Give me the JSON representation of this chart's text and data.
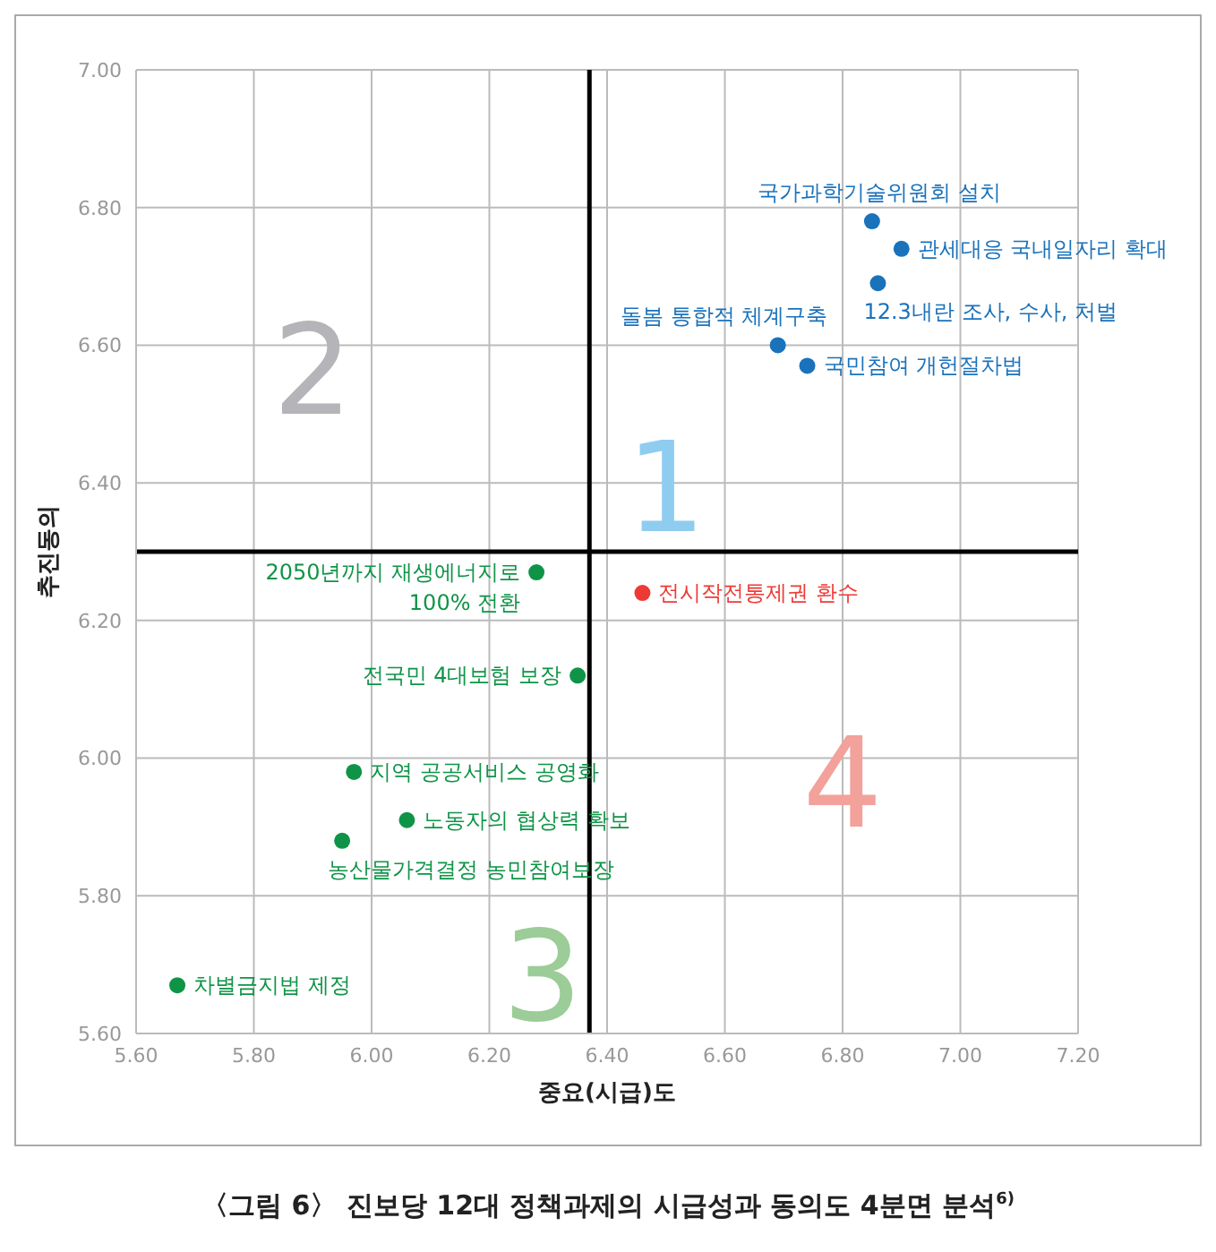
{
  "chart_data": {
    "type": "scatter",
    "title": "〈그림 6〉 진보당 12대 정책과제의 시급성과 동의도 4분면 분석$^{6)}$",
    "xlabel": "중요(시급)도",
    "ylabel": "추진동의",
    "xlim": [
      5.6,
      7.2
    ],
    "xticks": [
      {
        "value": 5.6,
        "label": "5.60"
      },
      {
        "value": 5.8,
        "label": "5.80"
      },
      {
        "value": 6.0,
        "label": "6.00"
      },
      {
        "value": 6.2,
        "label": "6.20"
      },
      {
        "value": 6.4,
        "label": "6.40"
      },
      {
        "value": 6.6,
        "label": "6.60"
      },
      {
        "value": 6.8,
        "label": "6.80"
      },
      {
        "value": 7.0,
        "label": "7.00"
      },
      {
        "value": 7.2,
        "label": "7.20"
      }
    ],
    "ylim": [
      5.6,
      7.0
    ],
    "yticks": [
      {
        "value": 5.6,
        "label": "5.60"
      },
      {
        "value": 5.8,
        "label": "5.80"
      },
      {
        "value": 6.0,
        "label": "6.00"
      },
      {
        "value": 6.2,
        "label": "6.20"
      },
      {
        "value": 6.4,
        "label": "6.40"
      },
      {
        "value": 6.6,
        "label": "6.60"
      },
      {
        "value": 6.8,
        "label": "6.80"
      },
      {
        "value": 7.0,
        "label": "7.00"
      }
    ],
    "grid": true,
    "marker": "circle",
    "ref_lines": [
      {
        "axis": "x",
        "value": 6.37,
        "color": "#000000"
      },
      {
        "axis": "y",
        "value": 6.3,
        "color": "#000000"
      }
    ],
    "annotations": [
      "1",
      "2",
      "3",
      "4"
    ],
    "series": [
      {
        "name": "국가과학기술위원회 설치",
        "color": "#1a72bb",
        "x": [
          6.85
        ],
        "values": [
          6.78
        ]
      },
      {
        "name": "관세대응 국내일자리 확대",
        "color": "#1a72bb",
        "x": [
          6.9
        ],
        "values": [
          6.74
        ]
      },
      {
        "name": "12.3내란 조사, 수사, 처벌",
        "color": "#1a72bb",
        "x": [
          6.86
        ],
        "values": [
          6.69
        ]
      },
      {
        "name": "돌봄 통합적 체계구축",
        "color": "#1a72bb",
        "x": [
          6.69
        ],
        "values": [
          6.6
        ]
      },
      {
        "name": "국민참여 개헌절차법",
        "color": "#1a72bb",
        "x": [
          6.74
        ],
        "values": [
          6.57
        ]
      },
      {
        "name": "2050년까지 재생에너지로\n100% 전환",
        "color": "#0f9447",
        "x": [
          6.28
        ],
        "values": [
          6.27
        ]
      },
      {
        "name": "전시작전통제권 환수",
        "color": "#ee3a35",
        "x": [
          6.46
        ],
        "values": [
          6.24
        ]
      },
      {
        "name": "전국민 4대보험 보장",
        "color": "#0f9447",
        "x": [
          6.35
        ],
        "values": [
          6.12
        ]
      },
      {
        "name": "지역 공공서비스 공영화",
        "color": "#0f9447",
        "x": [
          5.97
        ],
        "values": [
          5.98
        ]
      },
      {
        "name": "노동자의 협상력 확보",
        "color": "#0f9447",
        "x": [
          6.06
        ],
        "values": [
          5.91
        ]
      },
      {
        "name": "농산물가격결정 농민참여보장",
        "color": "#0f9447",
        "x": [
          5.95
        ],
        "values": [
          5.88
        ]
      },
      {
        "name": "차별금지법 제정",
        "color": "#0f9447",
        "x": [
          5.67
        ],
        "values": [
          5.67
        ]
      }
    ]
  }
}
